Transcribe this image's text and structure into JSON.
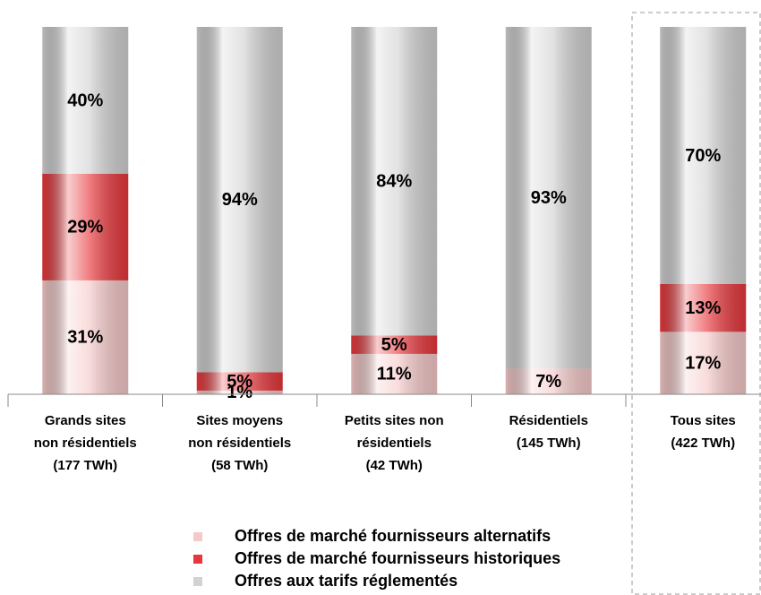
{
  "chart_data": {
    "type": "stacked_bar",
    "categories": [
      [
        "Grands sites",
        "non résidentiels",
        "(177 TWh)"
      ],
      [
        "Sites moyens",
        "non résidentiels",
        "(58 TWh)"
      ],
      [
        "Petits sites non",
        "résidentiels",
        "(42 TWh)"
      ],
      [
        "Résidentiels",
        "(145 TWh)"
      ],
      [
        "Tous sites",
        "(422 TWh)"
      ]
    ],
    "series": [
      {
        "name": "Offres de marché fournisseurs alternatifs",
        "color": "#f6c9c9",
        "values": [
          31,
          1,
          11,
          7,
          17
        ],
        "value_labels": [
          "31%",
          "1%",
          "11%",
          "7%",
          "17%"
        ]
      },
      {
        "name": "Offres de marché fournisseurs historiques",
        "color": "#e8373c",
        "values": [
          29,
          5,
          5,
          0,
          13
        ],
        "value_labels": [
          "29%",
          "5%",
          "5%",
          null,
          "13%"
        ]
      },
      {
        "name": "Offres aux tarifs réglementés",
        "color": "#d2d2d2",
        "values": [
          40,
          94,
          84,
          93,
          70
        ],
        "value_labels": [
          "40%",
          "94%",
          "84%",
          "93%",
          "70%"
        ]
      }
    ],
    "ylim": [
      0,
      100
    ],
    "legend": "bottom"
  }
}
